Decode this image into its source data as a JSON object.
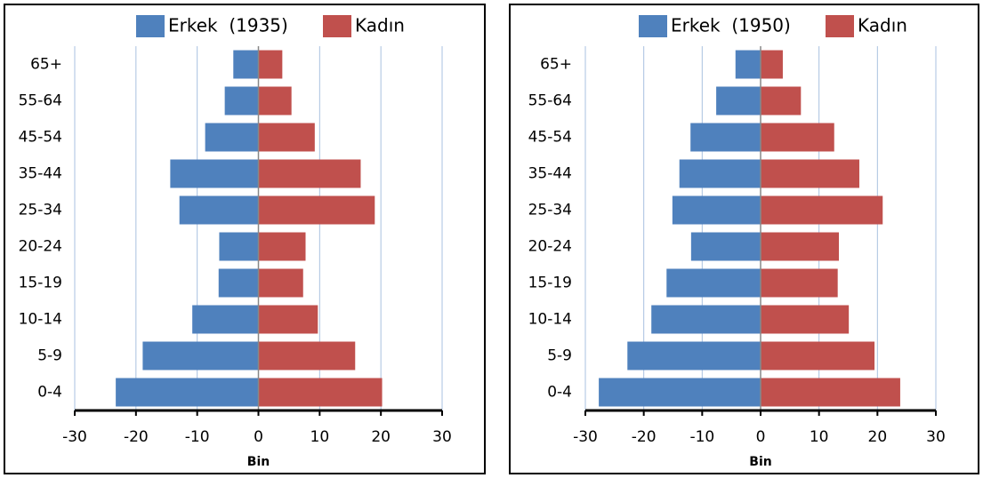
{
  "chart_data": [
    {
      "type": "bar",
      "orientation": "horizontal",
      "categories": [
        "0-4",
        "5-9",
        "10-14",
        "15-19",
        "20-24",
        "25-34",
        "35-44",
        "45-54",
        "55-64",
        "65+"
      ],
      "series": [
        {
          "name": "Erkek  (1935)",
          "color": "#4f81bd",
          "values": [
            -23.3,
            -18.9,
            -10.8,
            -6.5,
            -6.4,
            -12.9,
            -14.4,
            -8.7,
            -5.5,
            -4.1
          ]
        },
        {
          "name": "Kadın",
          "color": "#c0504d",
          "values": [
            20.2,
            15.8,
            9.7,
            7.3,
            7.7,
            19.0,
            16.7,
            9.2,
            5.4,
            3.9
          ]
        }
      ],
      "xlim": [
        -30,
        30
      ],
      "xticks": [
        -30,
        -20,
        -10,
        0,
        10,
        20,
        30
      ],
      "xlabel": "Bin",
      "grid": true
    },
    {
      "type": "bar",
      "orientation": "horizontal",
      "categories": [
        "0-4",
        "5-9",
        "10-14",
        "15-19",
        "20-24",
        "25-34",
        "35-44",
        "45-54",
        "55-64",
        "65+"
      ],
      "series": [
        {
          "name": "Erkek  (1950)",
          "color": "#4f81bd",
          "values": [
            -27.7,
            -22.8,
            -18.7,
            -16.1,
            -11.9,
            -15.1,
            -13.9,
            -12.0,
            -7.6,
            -4.3
          ]
        },
        {
          "name": "Kadın",
          "color": "#c0504d",
          "values": [
            23.9,
            19.5,
            15.1,
            13.2,
            13.4,
            20.9,
            16.9,
            12.6,
            6.9,
            3.8
          ]
        }
      ],
      "xlim": [
        -30,
        30
      ],
      "xticks": [
        -30,
        -20,
        -10,
        0,
        10,
        20,
        30
      ],
      "xlabel": "Bin",
      "grid": true
    }
  ]
}
